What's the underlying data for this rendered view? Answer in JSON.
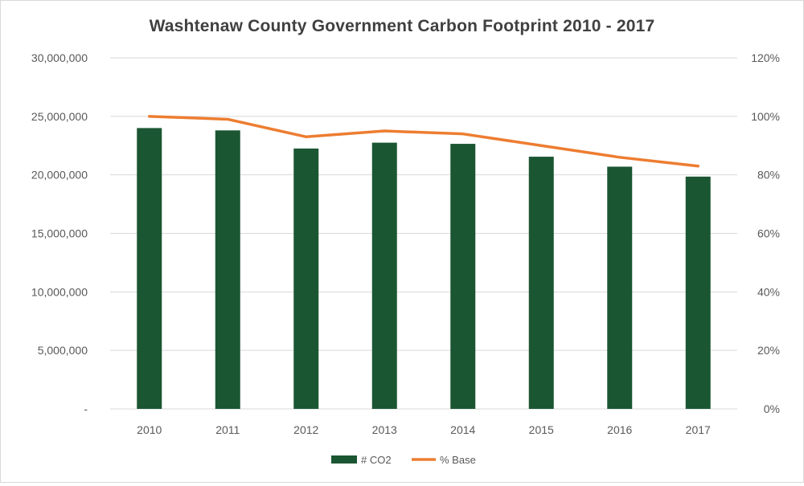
{
  "chart_data": {
    "type": "bar",
    "title": "Washtenaw County Government Carbon Footprint 2010 - 2017",
    "categories": [
      "2010",
      "2011",
      "2012",
      "2013",
      "2014",
      "2015",
      "2016",
      "2017"
    ],
    "series": [
      {
        "name": "# CO2",
        "type": "bar",
        "axis": "left",
        "color": "#1b5632",
        "values": [
          24000000,
          23800000,
          22250000,
          22750000,
          22650000,
          21550000,
          20700000,
          19850000
        ]
      },
      {
        "name": "% Base",
        "type": "line",
        "axis": "right",
        "color": "#ed7d31",
        "values": [
          1.0,
          0.99,
          0.93,
          0.95,
          0.94,
          0.9,
          0.86,
          0.83
        ]
      }
    ],
    "y_left": {
      "ylim": [
        0,
        30000000
      ],
      "ticks": [
        0,
        5000000,
        10000000,
        15000000,
        20000000,
        25000000,
        30000000
      ],
      "tick_labels": [
        "-",
        "5,000,000",
        "10,000,000",
        "15,000,000",
        "20,000,000",
        "25,000,000",
        "30,000,000"
      ]
    },
    "y_right": {
      "ylim": [
        0,
        1.2
      ],
      "ticks": [
        0,
        0.2,
        0.4,
        0.6,
        0.8,
        1.0,
        1.2
      ],
      "tick_labels": [
        "0%",
        "20%",
        "40%",
        "60%",
        "80%",
        "100%",
        "120%"
      ]
    },
    "grid": true,
    "legend": "bottom"
  }
}
